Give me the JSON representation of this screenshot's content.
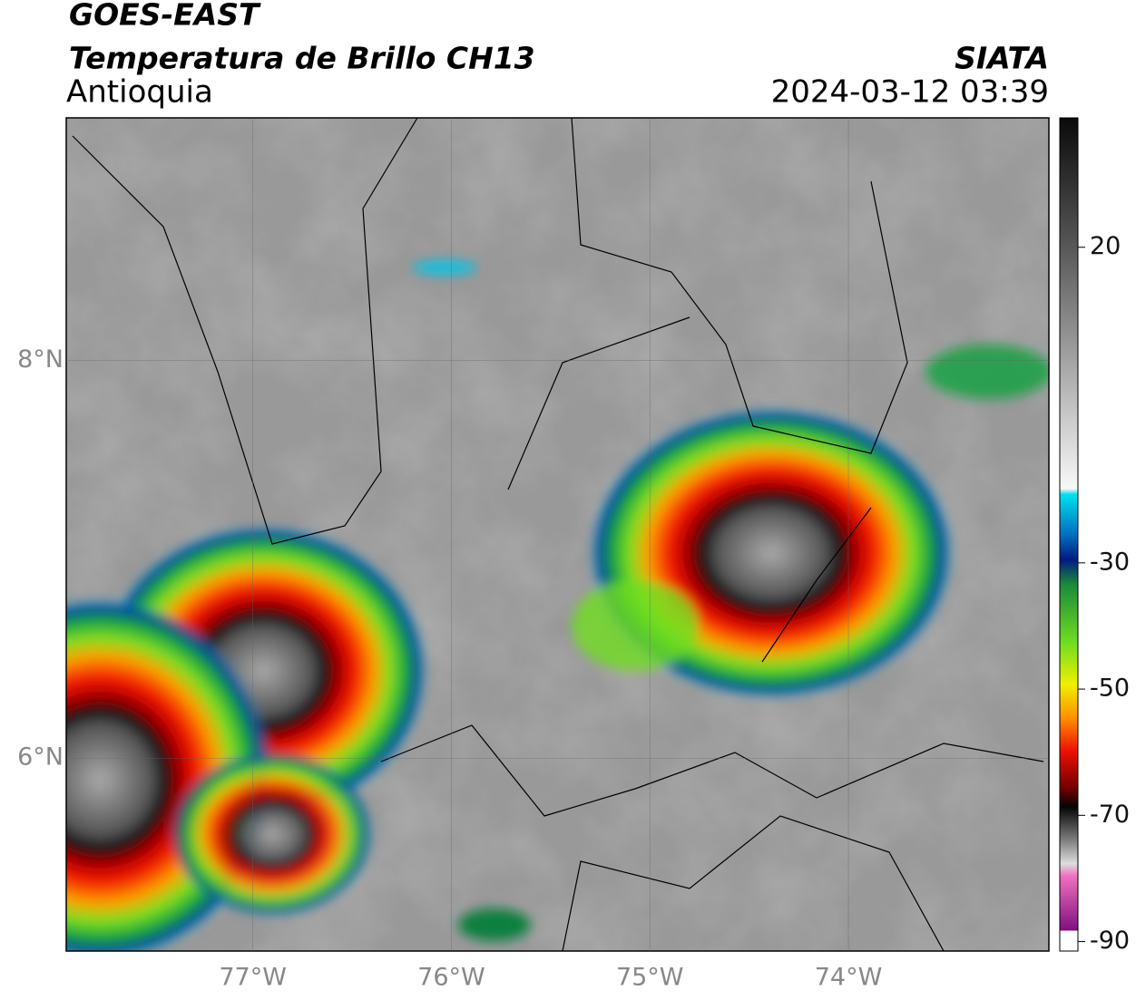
{
  "header": {
    "title": "GOES-EAST",
    "subtitle": "Temperatura de Brillo CH13",
    "region": "Antioquia",
    "source": "SIATA",
    "datetime": "2024-03-12 03:39"
  },
  "map": {
    "lon_range": [
      -77.94,
      -72.99
    ],
    "lat_range": [
      5.03,
      9.22
    ],
    "lon_ticks": [
      {
        "value": -77,
        "label": "77°W"
      },
      {
        "value": -76,
        "label": "76°W"
      },
      {
        "value": -75,
        "label": "75°W"
      },
      {
        "value": -74,
        "label": "74°W"
      }
    ],
    "lat_ticks": [
      {
        "value": 8,
        "label": "8°N"
      },
      {
        "value": 6,
        "label": "6°N"
      }
    ]
  },
  "colorbar": {
    "range": [
      -91.5,
      40.5
    ],
    "ticks": [
      20,
      -30,
      -50,
      -70,
      -90
    ]
  }
}
